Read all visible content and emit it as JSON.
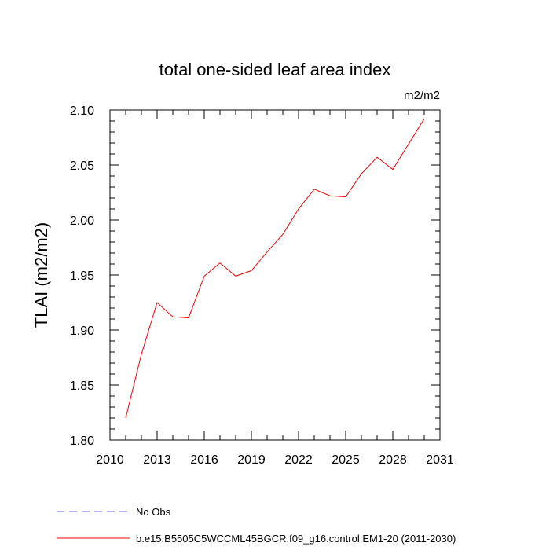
{
  "chart_data": {
    "type": "line",
    "title": "total one-sided leaf area index",
    "units": "m2/m2",
    "ylabel": "TLAI  (m2/m2)",
    "xlabel": "",
    "xlim": [
      2010,
      2031
    ],
    "ylim": [
      1.8,
      2.1
    ],
    "x_ticks": [
      "2010",
      "2013",
      "2016",
      "2019",
      "2022",
      "2025",
      "2028",
      "2031"
    ],
    "y_ticks": [
      "1.80",
      "1.85",
      "1.90",
      "1.95",
      "2.00",
      "2.05",
      "2.10"
    ],
    "series": [
      {
        "name": "b.e15.B5505C5WCCML45BGCR.f09_g16.control.EM1-20 (2011-2030)",
        "color": "#ff0000",
        "style": "solid",
        "x": [
          2011,
          2012,
          2013,
          2014,
          2015,
          2016,
          2017,
          2018,
          2019,
          2020,
          2021,
          2022,
          2023,
          2024,
          2025,
          2026,
          2027,
          2028,
          2029,
          2030
        ],
        "values": [
          1.82,
          1.878,
          1.925,
          1.912,
          1.911,
          1.949,
          1.961,
          1.949,
          1.954,
          1.971,
          1.987,
          2.01,
          2.028,
          2.022,
          2.021,
          2.042,
          2.057,
          2.046,
          2.069,
          2.092
        ]
      }
    ],
    "legend": [
      {
        "label": "No Obs",
        "color": "#6a6af0",
        "style": "dashed"
      },
      {
        "label": "b.e15.B5505C5WCCML45BGCR.f09_g16.control.EM1-20 (2011-2030)",
        "color": "#ff0000",
        "style": "solid"
      }
    ],
    "legend_position": "bottom",
    "grid": false
  }
}
